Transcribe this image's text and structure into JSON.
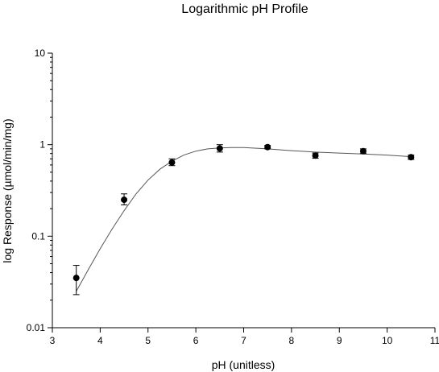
{
  "chart_data": {
    "type": "scatter",
    "title": "Logarithmic pH Profile",
    "xlabel": "pH (unitless)",
    "ylabel": "log Response (µmol/min/mg)",
    "xlim": [
      3,
      11
    ],
    "ylim": [
      0.01,
      10
    ],
    "yscale": "log",
    "grid": false,
    "x_ticks": [
      "3",
      "4",
      "5",
      "6",
      "7",
      "8",
      "9",
      "10",
      "11"
    ],
    "y_ticks": [
      "0.01",
      "0.1",
      "1",
      "10"
    ],
    "series": [
      {
        "x": [
          3.5,
          4.5,
          5.5,
          6.5,
          7.5,
          8.5,
          9.5,
          10.5
        ],
        "y": [
          0.035,
          0.25,
          0.64,
          0.91,
          0.94,
          0.76,
          0.85,
          0.73
        ],
        "error_low": [
          0.023,
          0.22,
          0.59,
          0.83,
          0.9,
          0.71,
          0.8,
          0.69
        ],
        "error_high": [
          0.048,
          0.29,
          0.7,
          1.0,
          0.98,
          0.81,
          0.9,
          0.77
        ]
      }
    ],
    "fit_curve": {
      "x": [
        3.5,
        3.75,
        4.0,
        4.25,
        4.5,
        4.75,
        5.0,
        5.25,
        5.5,
        5.75,
        6.0,
        6.25,
        6.5,
        6.75,
        7.0,
        7.5,
        8.0,
        8.5,
        9.0,
        9.5,
        10.0,
        10.5
      ],
      "y": [
        0.025,
        0.043,
        0.073,
        0.12,
        0.19,
        0.29,
        0.41,
        0.54,
        0.66,
        0.77,
        0.85,
        0.9,
        0.92,
        0.93,
        0.93,
        0.9,
        0.86,
        0.83,
        0.81,
        0.79,
        0.77,
        0.74
      ]
    },
    "colors": {
      "marker": "#000000",
      "line": "#555555",
      "axis": "#000000"
    }
  }
}
